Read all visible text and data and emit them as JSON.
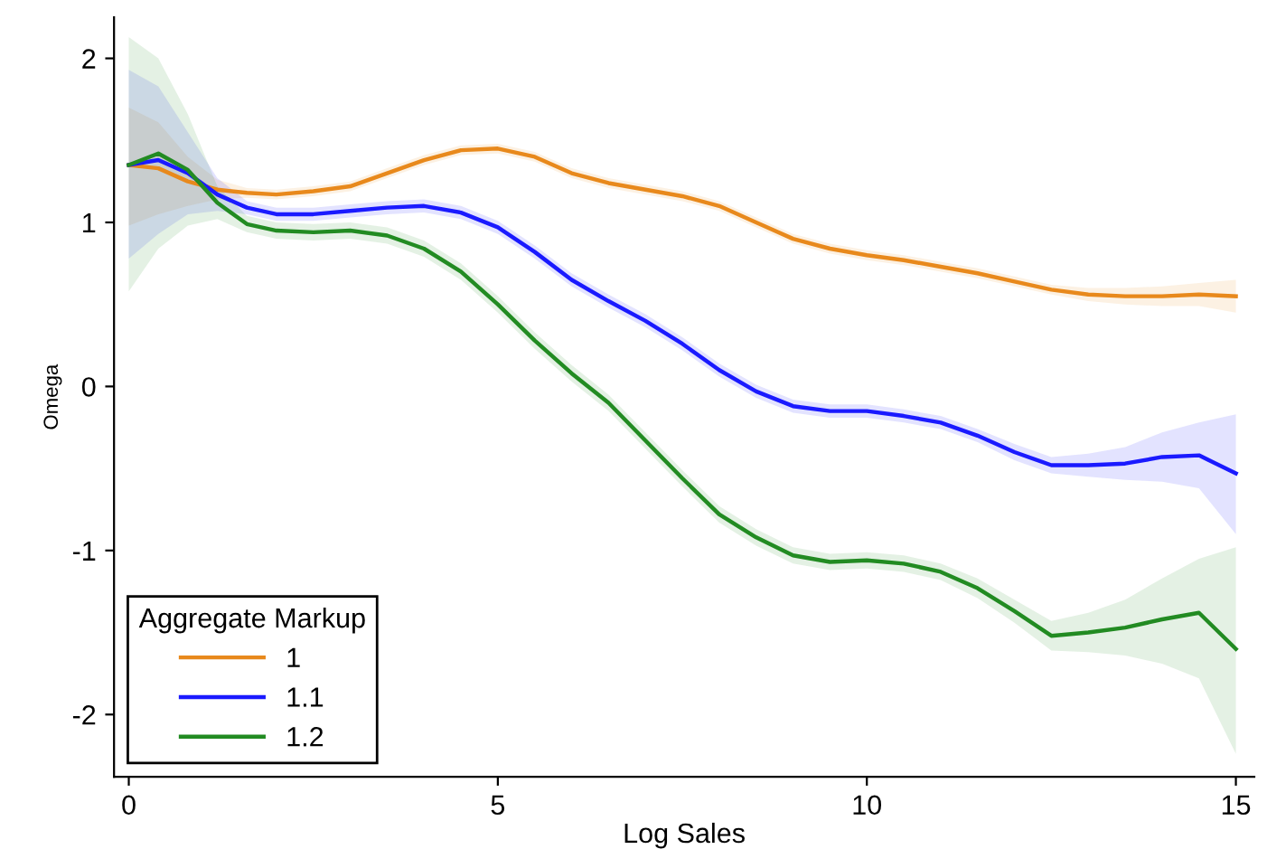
{
  "chart_data": {
    "type": "line",
    "xlabel": "Log Sales",
    "ylabel": "Omega",
    "legend_title": "Aggregate Markup",
    "legend": "bottom left",
    "grid": false,
    "xlim": [
      -0.2,
      15.25
    ],
    "ylim": [
      -2.38,
      2.25
    ],
    "xticks": [
      0,
      5,
      10,
      15
    ],
    "yticks": [
      -2,
      -1,
      0,
      1,
      2
    ],
    "x": [
      0,
      0.4,
      0.8,
      1.2,
      1.6,
      2,
      2.5,
      3,
      3.5,
      4,
      4.5,
      5,
      5.5,
      6,
      6.5,
      7,
      7.5,
      8,
      8.5,
      9,
      9.5,
      10,
      10.5,
      11,
      11.5,
      12,
      12.5,
      13,
      13.5,
      14,
      14.5,
      15
    ],
    "series": [
      {
        "name": "1",
        "color": "#e8891c",
        "values": [
          1.35,
          1.33,
          1.25,
          1.2,
          1.18,
          1.17,
          1.19,
          1.22,
          1.3,
          1.38,
          1.44,
          1.45,
          1.4,
          1.3,
          1.24,
          1.2,
          1.16,
          1.1,
          1.0,
          0.9,
          0.84,
          0.8,
          0.77,
          0.73,
          0.69,
          0.64,
          0.59,
          0.56,
          0.55,
          0.55,
          0.56,
          0.55
        ],
        "upper": [
          1.7,
          1.61,
          1.4,
          1.26,
          1.21,
          1.2,
          1.22,
          1.25,
          1.33,
          1.41,
          1.47,
          1.48,
          1.43,
          1.33,
          1.27,
          1.23,
          1.19,
          1.13,
          1.03,
          0.93,
          0.87,
          0.83,
          0.8,
          0.76,
          0.72,
          0.67,
          0.62,
          0.6,
          0.6,
          0.61,
          0.63,
          0.65
        ],
        "lower": [
          0.98,
          1.05,
          1.1,
          1.14,
          1.15,
          1.14,
          1.16,
          1.19,
          1.27,
          1.35,
          1.41,
          1.42,
          1.37,
          1.27,
          1.21,
          1.17,
          1.13,
          1.07,
          0.97,
          0.87,
          0.81,
          0.77,
          0.74,
          0.7,
          0.66,
          0.61,
          0.56,
          0.52,
          0.5,
          0.49,
          0.49,
          0.45
        ]
      },
      {
        "name": "1.1",
        "color": "#1a1aff",
        "values": [
          1.35,
          1.38,
          1.3,
          1.17,
          1.09,
          1.05,
          1.05,
          1.07,
          1.09,
          1.1,
          1.06,
          0.97,
          0.82,
          0.65,
          0.52,
          0.4,
          0.26,
          0.1,
          -0.03,
          -0.12,
          -0.15,
          -0.15,
          -0.18,
          -0.22,
          -0.3,
          -0.4,
          -0.48,
          -0.48,
          -0.47,
          -0.43,
          -0.42,
          -0.53
        ],
        "upper": [
          1.93,
          1.83,
          1.55,
          1.27,
          1.13,
          1.09,
          1.09,
          1.11,
          1.13,
          1.14,
          1.1,
          1.01,
          0.86,
          0.69,
          0.56,
          0.44,
          0.3,
          0.14,
          0.01,
          -0.08,
          -0.11,
          -0.11,
          -0.14,
          -0.18,
          -0.26,
          -0.35,
          -0.43,
          -0.41,
          -0.37,
          -0.28,
          -0.22,
          -0.17
        ],
        "lower": [
          0.78,
          0.93,
          1.05,
          1.07,
          1.05,
          1.01,
          1.01,
          1.03,
          1.05,
          1.06,
          1.02,
          0.93,
          0.78,
          0.61,
          0.48,
          0.36,
          0.22,
          0.06,
          -0.07,
          -0.16,
          -0.19,
          -0.19,
          -0.22,
          -0.26,
          -0.34,
          -0.45,
          -0.53,
          -0.55,
          -0.57,
          -0.58,
          -0.62,
          -0.9
        ]
      },
      {
        "name": "1.2",
        "color": "#228b22",
        "values": [
          1.35,
          1.42,
          1.32,
          1.12,
          0.99,
          0.95,
          0.94,
          0.95,
          0.92,
          0.84,
          0.7,
          0.5,
          0.28,
          0.08,
          -0.1,
          -0.33,
          -0.56,
          -0.78,
          -0.92,
          -1.03,
          -1.07,
          -1.06,
          -1.08,
          -1.13,
          -1.23,
          -1.37,
          -1.52,
          -1.5,
          -1.47,
          -1.42,
          -1.38,
          -1.6
        ],
        "upper": [
          2.13,
          2.0,
          1.66,
          1.22,
          1.04,
          1.0,
          0.99,
          1.0,
          0.97,
          0.89,
          0.75,
          0.55,
          0.33,
          0.13,
          -0.05,
          -0.28,
          -0.51,
          -0.73,
          -0.87,
          -0.98,
          -1.02,
          -1.01,
          -1.03,
          -1.08,
          -1.17,
          -1.3,
          -1.43,
          -1.38,
          -1.3,
          -1.17,
          -1.05,
          -0.98
        ],
        "lower": [
          0.58,
          0.84,
          0.98,
          1.02,
          0.94,
          0.9,
          0.89,
          0.9,
          0.87,
          0.79,
          0.65,
          0.45,
          0.23,
          0.03,
          -0.15,
          -0.38,
          -0.61,
          -0.83,
          -0.97,
          -1.08,
          -1.12,
          -1.11,
          -1.13,
          -1.18,
          -1.29,
          -1.44,
          -1.61,
          -1.62,
          -1.64,
          -1.69,
          -1.78,
          -2.24
        ]
      }
    ]
  }
}
